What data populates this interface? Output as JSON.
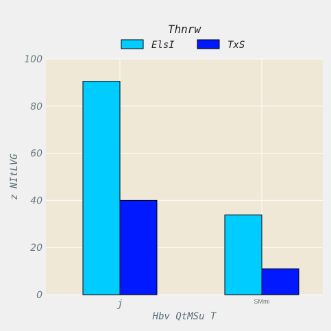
{
  "chart_data": {
    "type": "bar",
    "title": "Thnrw",
    "xlabel": "Hbv QtMSu T",
    "ylabel": "z NItLVG",
    "categories": [
      "j",
      "SMmi"
    ],
    "series": [
      {
        "name": "ElsI",
        "values": [
          90.5,
          33.8
        ]
      },
      {
        "name": "TxS",
        "values": [
          40.0,
          11.0
        ]
      }
    ],
    "ylim": [
      0,
      100
    ],
    "yticks": [
      "0",
      "20",
      "40",
      "60",
      "80",
      "100"
    ],
    "grid": true,
    "legend": "top-center",
    "colors": {
      "series": [
        "#00ccff",
        "#0019ff"
      ],
      "plot_background": "#efe8d6",
      "figure_background": "#f0f0f0",
      "bar_edge": "#000000"
    }
  }
}
